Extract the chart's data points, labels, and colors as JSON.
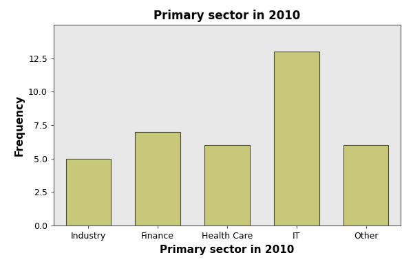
{
  "categories": [
    "Industry",
    "Finance",
    "Health Care",
    "IT",
    "Other"
  ],
  "values": [
    5,
    7,
    6,
    13,
    6
  ],
  "bar_color": "#c8c87a",
  "bar_edgecolor": "#4a4a30",
  "title": "Primary sector in 2010",
  "xlabel": "Primary sector in 2010",
  "ylabel": "Frequency",
  "ylim": [
    0,
    15
  ],
  "yticks": [
    0.0,
    2.5,
    5.0,
    7.5,
    10.0,
    12.5
  ],
  "plot_bg_color": "#e8e8e8",
  "fig_bg_color": "#ffffff",
  "title_fontsize": 12,
  "label_fontsize": 11,
  "tick_fontsize": 9,
  "bar_width": 0.65,
  "title_fontweight": "bold",
  "label_fontweight": "bold",
  "spine_color": "#555555"
}
